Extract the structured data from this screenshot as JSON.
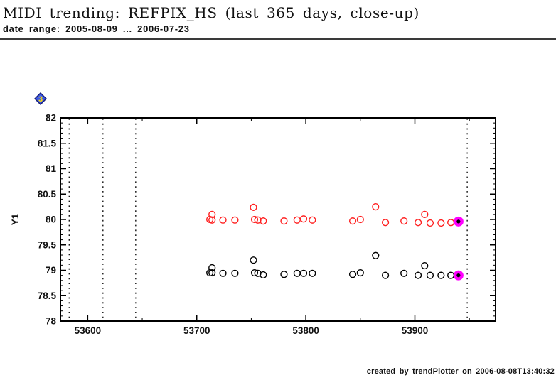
{
  "page": {
    "title": "MIDI trending: REFPIX_HS (last 365 days, close-up)",
    "subtitle": "date range: 2005-08-09 ... 2006-07-23",
    "footer": "created by trendPlotter on 2006-08-08T13:40:32"
  },
  "icon": {
    "label": "3",
    "fill": "#3a57e8",
    "border": "#18207a",
    "label_color": "#ffe000"
  },
  "chart_data": {
    "type": "scatter",
    "title": "",
    "xlabel": "",
    "ylabel": "Y1",
    "xlim": [
      53575,
      53974
    ],
    "ylim": [
      78,
      82
    ],
    "grid": false,
    "x_ticks": [
      {
        "v": 53600,
        "label": "53600"
      },
      {
        "v": 53700,
        "label": "53700"
      },
      {
        "v": 53800,
        "label": "53800"
      },
      {
        "v": 53900,
        "label": "53900"
      }
    ],
    "x_minor_step": 50,
    "y_ticks": [
      {
        "v": 78,
        "label": "78"
      },
      {
        "v": 78.5,
        "label": "78.5"
      },
      {
        "v": 79,
        "label": "79"
      },
      {
        "v": 79.5,
        "label": "79.5"
      },
      {
        "v": 80,
        "label": "80"
      },
      {
        "v": 80.5,
        "label": "80.5"
      },
      {
        "v": 81,
        "label": "81"
      },
      {
        "v": 81.5,
        "label": "81.5"
      },
      {
        "v": 82,
        "label": "82"
      }
    ],
    "y_minor_step": 0.1,
    "vlines_dotted_x": [
      53583,
      53614,
      53644,
      53948
    ],
    "series": [
      {
        "name": "upper-series-red",
        "color": "#ff2020",
        "marker": "circle-open",
        "points": [
          [
            53712,
            80.0
          ],
          [
            53714,
            79.99
          ],
          [
            53714,
            80.1
          ],
          [
            53724,
            79.99
          ],
          [
            53735,
            79.99
          ],
          [
            53752,
            80.24
          ],
          [
            53753,
            80.0
          ],
          [
            53756,
            79.99
          ],
          [
            53761,
            79.97
          ],
          [
            53780,
            79.97
          ],
          [
            53792,
            79.99
          ],
          [
            53798,
            80.01
          ],
          [
            53806,
            79.99
          ],
          [
            53843,
            79.97
          ],
          [
            53850,
            80.0
          ],
          [
            53864,
            80.25
          ],
          [
            53873,
            79.94
          ],
          [
            53890,
            79.97
          ],
          [
            53903,
            79.94
          ],
          [
            53909,
            80.1
          ],
          [
            53914,
            79.93
          ],
          [
            53924,
            79.93
          ],
          [
            53933,
            79.94
          ],
          [
            53940,
            79.96
          ]
        ]
      },
      {
        "name": "lower-series-black",
        "color": "#000000",
        "marker": "circle-open",
        "points": [
          [
            53712,
            78.95
          ],
          [
            53714,
            78.95
          ],
          [
            53714,
            79.05
          ],
          [
            53724,
            78.94
          ],
          [
            53735,
            78.94
          ],
          [
            53752,
            79.2
          ],
          [
            53753,
            78.95
          ],
          [
            53756,
            78.94
          ],
          [
            53761,
            78.91
          ],
          [
            53780,
            78.92
          ],
          [
            53792,
            78.94
          ],
          [
            53798,
            78.94
          ],
          [
            53806,
            78.94
          ],
          [
            53843,
            78.92
          ],
          [
            53850,
            78.95
          ],
          [
            53864,
            79.29
          ],
          [
            53873,
            78.9
          ],
          [
            53890,
            78.94
          ],
          [
            53903,
            78.9
          ],
          [
            53909,
            79.09
          ],
          [
            53914,
            78.9
          ],
          [
            53924,
            78.9
          ],
          [
            53933,
            78.9
          ],
          [
            53940,
            78.9
          ]
        ]
      }
    ],
    "latest_highlight": {
      "color": "#ff00ff",
      "dot_color": "#000000",
      "points": [
        [
          53940,
          79.96
        ],
        [
          53940,
          78.9
        ]
      ]
    }
  }
}
